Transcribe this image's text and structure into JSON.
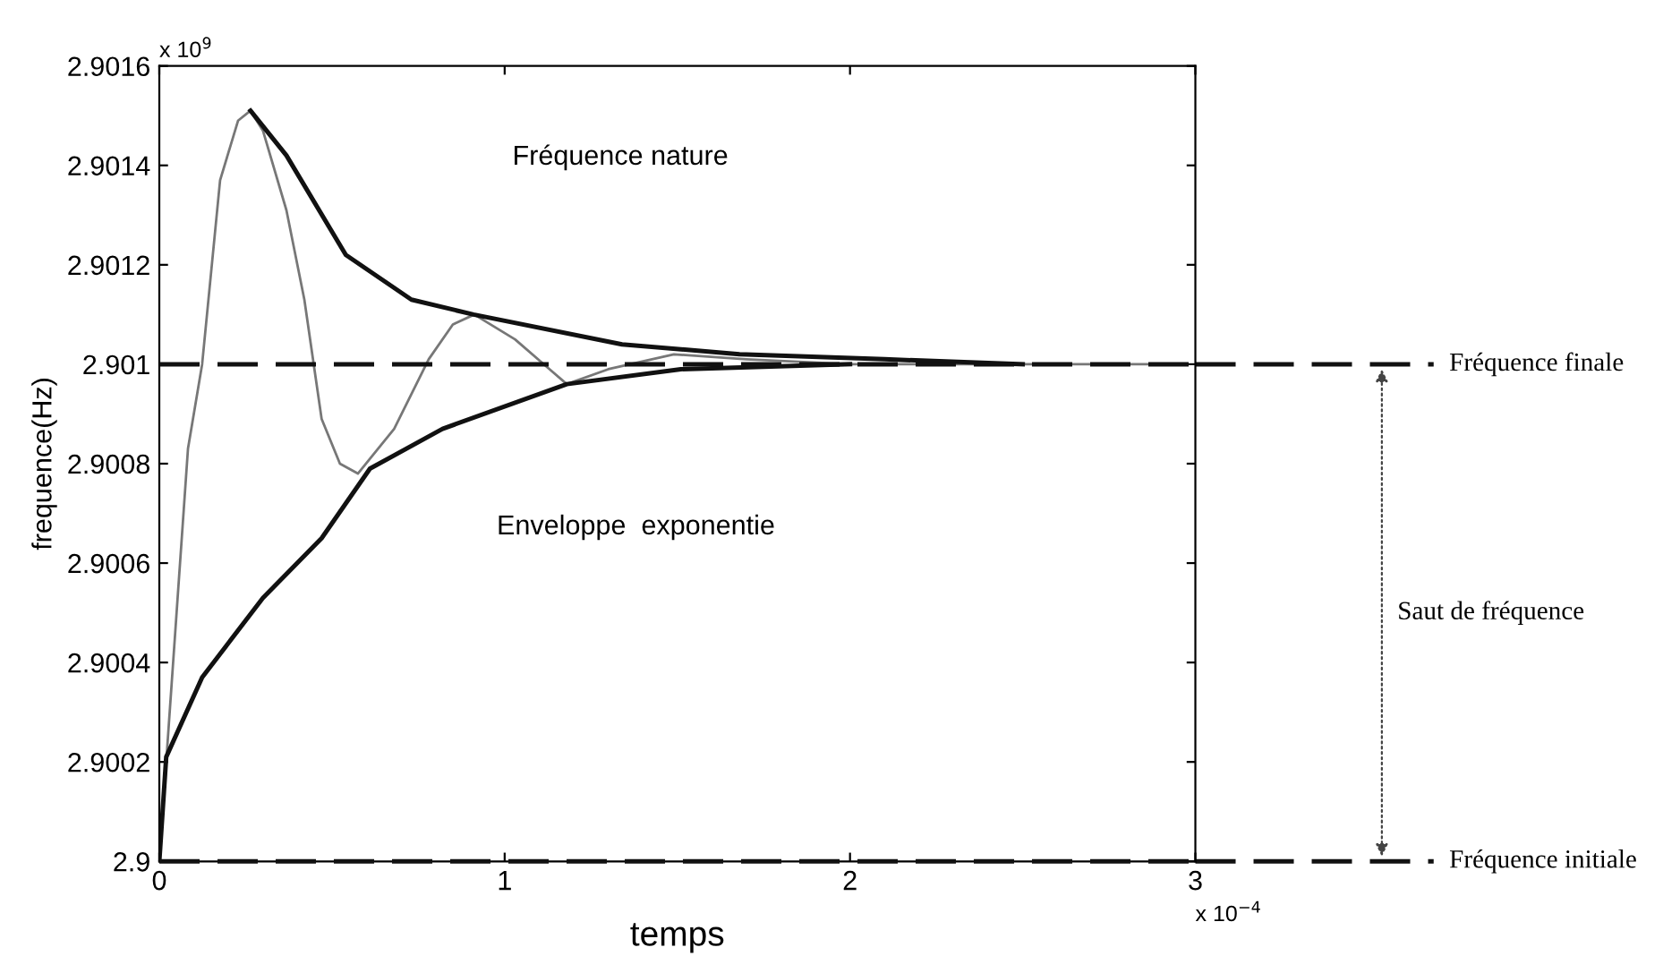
{
  "chart_data": {
    "type": "line",
    "xlabel": "temps",
    "ylabel": "frequence(Hz)",
    "xlim": [
      0,
      3
    ],
    "xticks": [
      0,
      1,
      2,
      3
    ],
    "ylim": [
      2.9,
      2.9016
    ],
    "yticks": [
      2.9,
      2.9002,
      2.9004,
      2.9006,
      2.9008,
      2.901,
      2.9012,
      2.9014,
      2.9016
    ],
    "grid": false,
    "marker": "none",
    "series": [
      {
        "color": "#777777",
        "line_style": "solid",
        "x": [
          0,
          0.04,
          0.083,
          0.124,
          0.176,
          0.228,
          0.264,
          0.3,
          0.368,
          0.42,
          0.47,
          0.523,
          0.575,
          0.68,
          0.78,
          0.85,
          0.912,
          1.03,
          1.13,
          1.18,
          1.3,
          1.49,
          1.7,
          2.0,
          2.4,
          2.88
        ],
        "values": [
          2.9,
          2.9004,
          2.90083,
          2.901,
          2.90137,
          2.90149,
          2.90151,
          2.90147,
          2.90131,
          2.90113,
          2.90089,
          2.9008,
          2.90078,
          2.90087,
          2.90101,
          2.90108,
          2.9011,
          2.90105,
          2.90099,
          2.90096,
          2.90099,
          2.90102,
          2.90101,
          2.901,
          2.901,
          2.901
        ]
      },
      {
        "color": "#111111",
        "line_style": "solid",
        "x": [
          0.264,
          0.368,
          0.54,
          0.73,
          0.91,
          1.34,
          1.68,
          2.1,
          2.5
        ],
        "values": [
          2.90151,
          2.90142,
          2.90122,
          2.90113,
          2.9011,
          2.90104,
          2.90102,
          2.90101,
          2.901
        ]
      },
      {
        "color": "#111111",
        "line_style": "solid",
        "x": [
          0,
          0.02,
          0.124,
          0.3,
          0.47,
          0.61,
          0.82,
          1.18,
          1.51,
          2.0
        ],
        "values": [
          2.9,
          2.90021,
          2.90037,
          2.90053,
          2.90065,
          2.90079,
          2.90087,
          2.90096,
          2.90099,
          2.901
        ]
      }
    ],
    "ref_lines": [
      {
        "axis": "y",
        "value": 2.901,
        "label": "Fréquence finale",
        "color": "#111111",
        "line_style": "dashed"
      },
      {
        "axis": "y",
        "value": 2.9,
        "label": "Fréquence initiale",
        "color": "#111111",
        "line_style": "dashed"
      }
    ],
    "annotations": [
      "Saut de fréquence",
      "x 10$^{9}$",
      "x 10$^{−4}$",
      "Fréquence nature",
      "Enveloppe  exponentie"
    ]
  }
}
